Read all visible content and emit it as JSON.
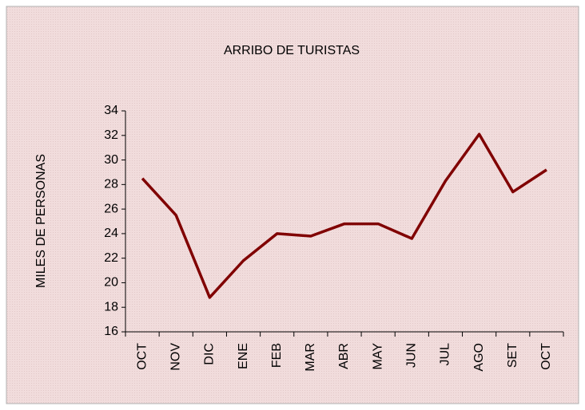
{
  "chart_data": {
    "type": "line",
    "title": "ARRIBO DE TURISTAS",
    "y_label": "MILES DE PERSONAS",
    "categories": [
      "OCT",
      "NOV",
      "DIC",
      "ENE",
      "FEB",
      "MAR",
      "ABR",
      "MAY",
      "JUN",
      "JUL",
      "AGO",
      "SET",
      "OCT"
    ],
    "series": [
      {
        "name": "ARRIBO DE TURISTAS",
        "color": "#800000",
        "values": [
          28.5,
          25.5,
          18.8,
          21.8,
          24.0,
          23.8,
          24.8,
          24.8,
          23.6,
          28.3,
          32.1,
          27.4,
          29.2
        ]
      }
    ],
    "ylim": [
      16,
      34
    ],
    "yticks": [
      16,
      18,
      20,
      22,
      24,
      26,
      28,
      30,
      32,
      34
    ],
    "grid": false
  }
}
